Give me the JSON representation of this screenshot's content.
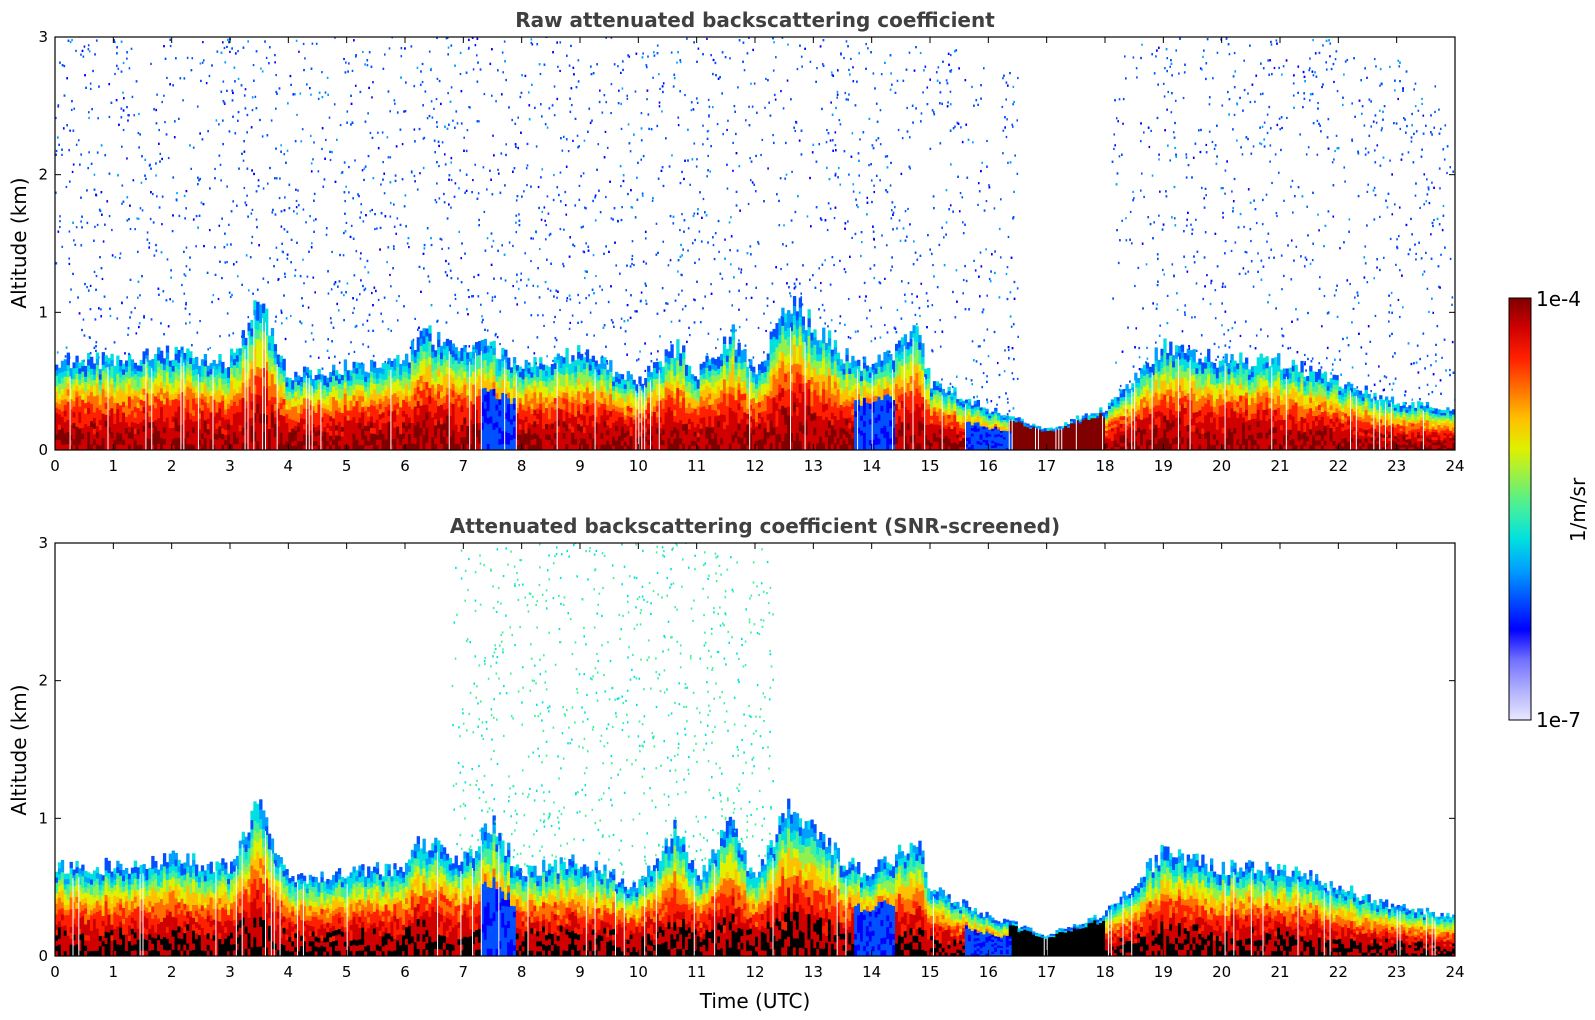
{
  "chart_data": [
    {
      "type": "heatmap",
      "title": "Raw attenuated backscattering coefficient",
      "xlabel": "",
      "ylabel": "Altitude (km)",
      "xlim": [
        0,
        24
      ],
      "ylim": [
        0,
        3
      ],
      "x_ticks": [
        "0",
        "1",
        "2",
        "3",
        "4",
        "5",
        "6",
        "7",
        "8",
        "9",
        "10",
        "11",
        "12",
        "13",
        "14",
        "15",
        "16",
        "17",
        "18",
        "19",
        "20",
        "21",
        "22",
        "23",
        "24"
      ],
      "y_ticks": [
        "0",
        "1",
        "2",
        "3"
      ],
      "screened": false,
      "layer_top_km": [
        [
          0,
          0.65
        ],
        [
          1,
          0.65
        ],
        [
          2,
          0.7
        ],
        [
          3,
          0.65
        ],
        [
          3.5,
          1.1
        ],
        [
          4,
          0.55
        ],
        [
          5,
          0.6
        ],
        [
          6,
          0.65
        ],
        [
          6.3,
          0.85
        ],
        [
          7,
          0.7
        ],
        [
          7.5,
          0.75
        ],
        [
          8,
          0.6
        ],
        [
          9,
          0.7
        ],
        [
          10,
          0.5
        ],
        [
          10.7,
          0.75
        ],
        [
          11,
          0.55
        ],
        [
          11.6,
          0.85
        ],
        [
          12,
          0.55
        ],
        [
          12.6,
          1.1
        ],
        [
          13,
          0.9
        ],
        [
          13.5,
          0.7
        ],
        [
          14,
          0.6
        ],
        [
          14.8,
          0.85
        ],
        [
          15,
          0.5
        ],
        [
          16,
          0.3
        ],
        [
          17,
          0.15
        ],
        [
          18,
          0.3
        ],
        [
          19,
          0.75
        ],
        [
          20,
          0.65
        ],
        [
          21,
          0.65
        ],
        [
          22,
          0.5
        ],
        [
          23,
          0.35
        ],
        [
          24,
          0.3
        ]
      ],
      "noise_extent_km": 3.0
    },
    {
      "type": "heatmap",
      "title": "Attenuated backscattering coefficient (SNR-screened)",
      "xlabel": "Time (UTC)",
      "ylabel": "Altitude (km)",
      "xlim": [
        0,
        24
      ],
      "ylim": [
        0,
        3
      ],
      "x_ticks": [
        "0",
        "1",
        "2",
        "3",
        "4",
        "5",
        "6",
        "7",
        "8",
        "9",
        "10",
        "11",
        "12",
        "13",
        "14",
        "15",
        "16",
        "17",
        "18",
        "19",
        "20",
        "21",
        "22",
        "23",
        "24"
      ],
      "y_ticks": [
        "0",
        "1",
        "2",
        "3"
      ],
      "screened": true,
      "layer_top_km": [
        [
          0,
          0.65
        ],
        [
          1,
          0.65
        ],
        [
          2,
          0.7
        ],
        [
          3,
          0.65
        ],
        [
          3.5,
          1.1
        ],
        [
          4,
          0.55
        ],
        [
          5,
          0.6
        ],
        [
          6,
          0.65
        ],
        [
          6.3,
          0.85
        ],
        [
          7,
          0.7
        ],
        [
          7.5,
          0.95
        ],
        [
          8,
          0.6
        ],
        [
          9,
          0.7
        ],
        [
          10,
          0.5
        ],
        [
          10.7,
          0.95
        ],
        [
          11,
          0.55
        ],
        [
          11.6,
          0.95
        ],
        [
          12,
          0.55
        ],
        [
          12.6,
          1.15
        ],
        [
          13,
          0.9
        ],
        [
          13.5,
          0.7
        ],
        [
          14,
          0.6
        ],
        [
          14.8,
          0.85
        ],
        [
          15,
          0.5
        ],
        [
          16,
          0.3
        ],
        [
          17,
          0.15
        ],
        [
          18,
          0.3
        ],
        [
          19,
          0.75
        ],
        [
          20,
          0.65
        ],
        [
          21,
          0.65
        ],
        [
          22,
          0.5
        ],
        [
          23,
          0.35
        ],
        [
          24,
          0.3
        ]
      ],
      "noise_extent_km": 3.0
    }
  ],
  "colorbar": {
    "max_label": "1e-4",
    "min_label": "1e-7",
    "unit_label": "1/m/sr",
    "colormap": [
      "#e8e8ff",
      "#b0b0ff",
      "#7070ff",
      "#0000ff",
      "#0050ff",
      "#00a0ff",
      "#00e0e0",
      "#40f0a0",
      "#90f050",
      "#e0f000",
      "#ffc000",
      "#ff7000",
      "#ff2000",
      "#d00000",
      "#800000"
    ]
  }
}
